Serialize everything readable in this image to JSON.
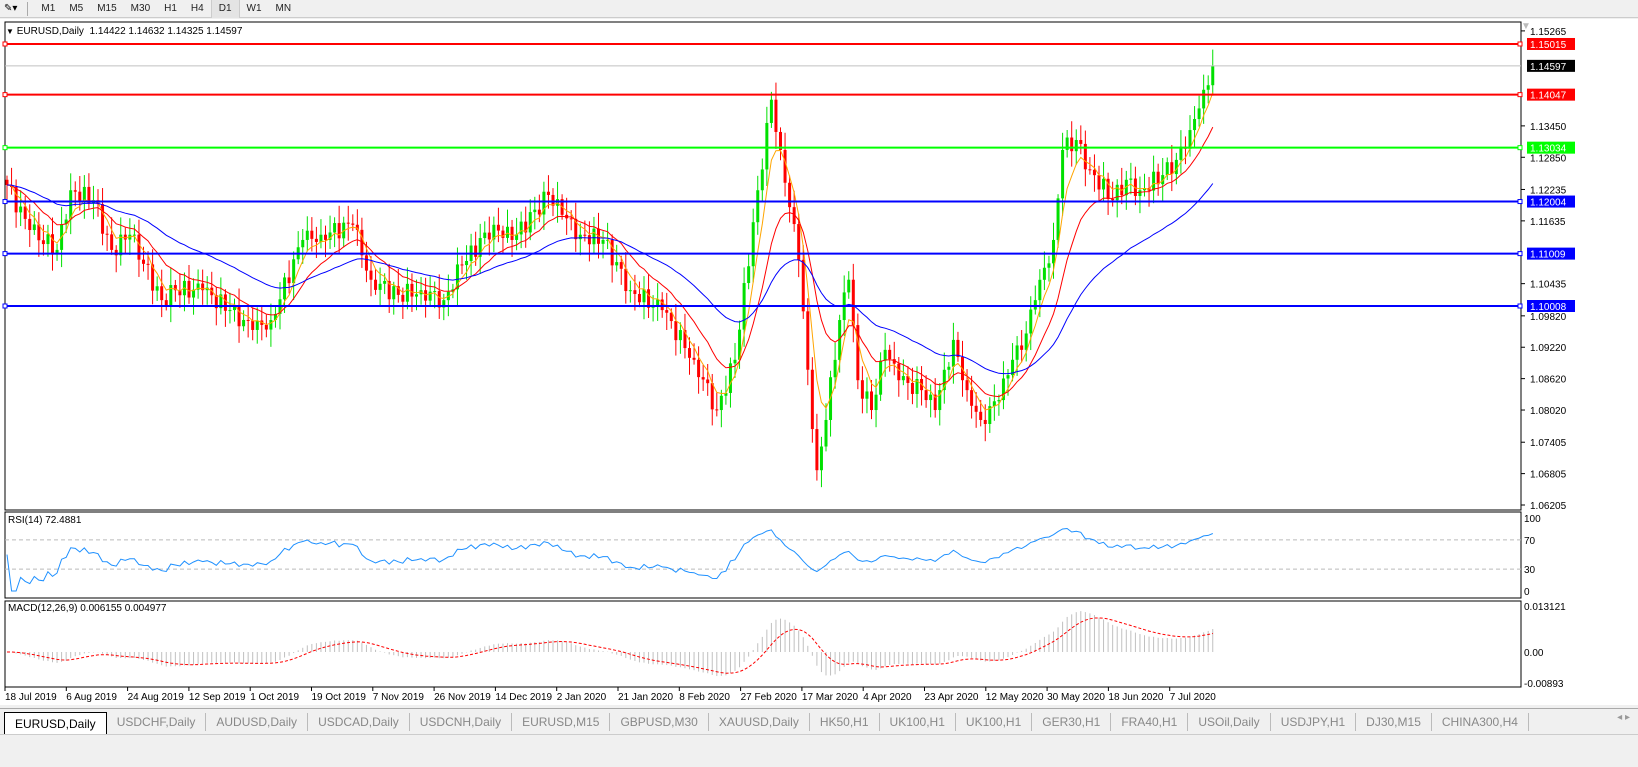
{
  "toolbar": {
    "timeframes": [
      "M1",
      "M5",
      "M15",
      "M30",
      "H1",
      "H4",
      "D1",
      "W1",
      "MN"
    ],
    "active": "D1"
  },
  "header": {
    "symbol": "EURUSD,Daily",
    "ohlc": "1.14422 1.14632 1.14325 1.14597"
  },
  "colors": {
    "bull": "#00e000",
    "bear": "#ff0000",
    "ma_fast": "#ffa500",
    "ma_mid": "#ff0000",
    "ma_slow": "#0000ff",
    "rsi": "#1e90ff",
    "macd_signal": "#ff0000",
    "macd_hist": "#c0c0c0"
  },
  "chart_data": {
    "type": "candlestick",
    "price_axis": {
      "ylim": [
        1.06205,
        1.15265
      ],
      "ticks": [
        "1.15265",
        "1.13450",
        "1.12850",
        "1.12235",
        "1.11635",
        "1.10435",
        "1.09820",
        "1.09220",
        "1.08620",
        "1.08020",
        "1.07405",
        "1.06805",
        "1.06205"
      ]
    },
    "current_price": "1.14597",
    "levels": [
      {
        "value": "1.15015",
        "color": "#ff0000"
      },
      {
        "value": "1.14047",
        "color": "#ff0000"
      },
      {
        "value": "1.13034",
        "color": "#00ff00"
      },
      {
        "value": "1.12004",
        "color": "#0000ff"
      },
      {
        "value": "1.11009",
        "color": "#0000ff"
      },
      {
        "value": "1.10008",
        "color": "#0000ff"
      }
    ],
    "date_labels": [
      "18 Jul 2019",
      "6 Aug 2019",
      "24 Aug 2019",
      "12 Sep 2019",
      "1 Oct 2019",
      "19 Oct 2019",
      "7 Nov 2019",
      "26 Nov 2019",
      "14 Dec 2019",
      "2 Jan 2020",
      "21 Jan 2020",
      "8 Feb 2020",
      "27 Feb 2020",
      "17 Mar 2020",
      "4 Apr 2020",
      "23 Apr 2020",
      "12 May 2020",
      "30 May 2020",
      "18 Jun 2020",
      "7 Jul 2020"
    ],
    "key_closes": [
      [
        0,
        1.1232
      ],
      [
        5,
        1.1146
      ],
      [
        11,
        1.1108
      ],
      [
        14,
        1.1222
      ],
      [
        19,
        1.1203
      ],
      [
        23,
        1.1108
      ],
      [
        27,
        1.1137
      ],
      [
        34,
        1.1012
      ],
      [
        37,
        1.1031
      ],
      [
        43,
        1.1031
      ],
      [
        49,
        1.0993
      ],
      [
        54,
        1.0955
      ],
      [
        58,
        1.0974
      ],
      [
        65,
        1.1127
      ],
      [
        69,
        1.1137
      ],
      [
        76,
        1.1156
      ],
      [
        80,
        1.1051
      ],
      [
        86,
        1.1022
      ],
      [
        91,
        1.1031
      ],
      [
        96,
        1.1012
      ],
      [
        100,
        1.1079
      ],
      [
        107,
        1.1156
      ],
      [
        111,
        1.1127
      ],
      [
        119,
        1.1213
      ],
      [
        122,
        1.1175
      ],
      [
        126,
        1.1137
      ],
      [
        131,
        1.1127
      ],
      [
        137,
        1.1031
      ],
      [
        144,
        1.0993
      ],
      [
        151,
        1.0898
      ],
      [
        156,
        1.0802
      ],
      [
        160,
        1.0898
      ],
      [
        165,
        1.1222
      ],
      [
        168,
        1.1395
      ],
      [
        170,
        1.1299
      ],
      [
        174,
        1.1089
      ],
      [
        176,
        1.0879
      ],
      [
        178,
        1.0687
      ],
      [
        180,
        1.0783
      ],
      [
        183,
        1.0974
      ],
      [
        185,
        1.1051
      ],
      [
        187,
        1.0859
      ],
      [
        190,
        1.0802
      ],
      [
        193,
        1.0917
      ],
      [
        196,
        1.0859
      ],
      [
        201,
        1.084
      ],
      [
        204,
        1.0802
      ],
      [
        208,
        1.0936
      ],
      [
        211,
        1.084
      ],
      [
        214,
        1.0783
      ],
      [
        218,
        1.0821
      ],
      [
        221,
        1.0898
      ],
      [
        223,
        1.0917
      ],
      [
        226,
        1.1012
      ],
      [
        230,
        1.1127
      ],
      [
        232,
        1.1299
      ],
      [
        235,
        1.1318
      ],
      [
        238,
        1.1261
      ],
      [
        243,
        1.1203
      ],
      [
        246,
        1.1242
      ],
      [
        249,
        1.1222
      ],
      [
        254,
        1.1251
      ],
      [
        257,
        1.128
      ],
      [
        260,
        1.1337
      ],
      [
        263,
        1.1414
      ],
      [
        265,
        1.1459
      ]
    ],
    "rsi": {
      "label": "RSI(14) 72.4881",
      "ticks": [
        "100",
        "70",
        "30",
        "0"
      ]
    },
    "macd": {
      "label": "MACD(12,26,9) 0.006155 0.004977",
      "ticks": [
        "0.013121",
        "0.00",
        "-0.00893"
      ]
    }
  },
  "tabs": [
    "EURUSD,Daily",
    "USDCHF,Daily",
    "AUDUSD,Daily",
    "USDCAD,Daily",
    "USDCNH,Daily",
    "EURUSD,M15",
    "GBPUSD,M30",
    "XAUUSD,Daily",
    "HK50,H1",
    "UK100,H1",
    "UK100,H1",
    "GER30,H1",
    "FRA40,H1",
    "USOil,Daily",
    "USDJPY,H1",
    "DJ30,M15",
    "CHINA300,H4"
  ],
  "tab_active": 0
}
